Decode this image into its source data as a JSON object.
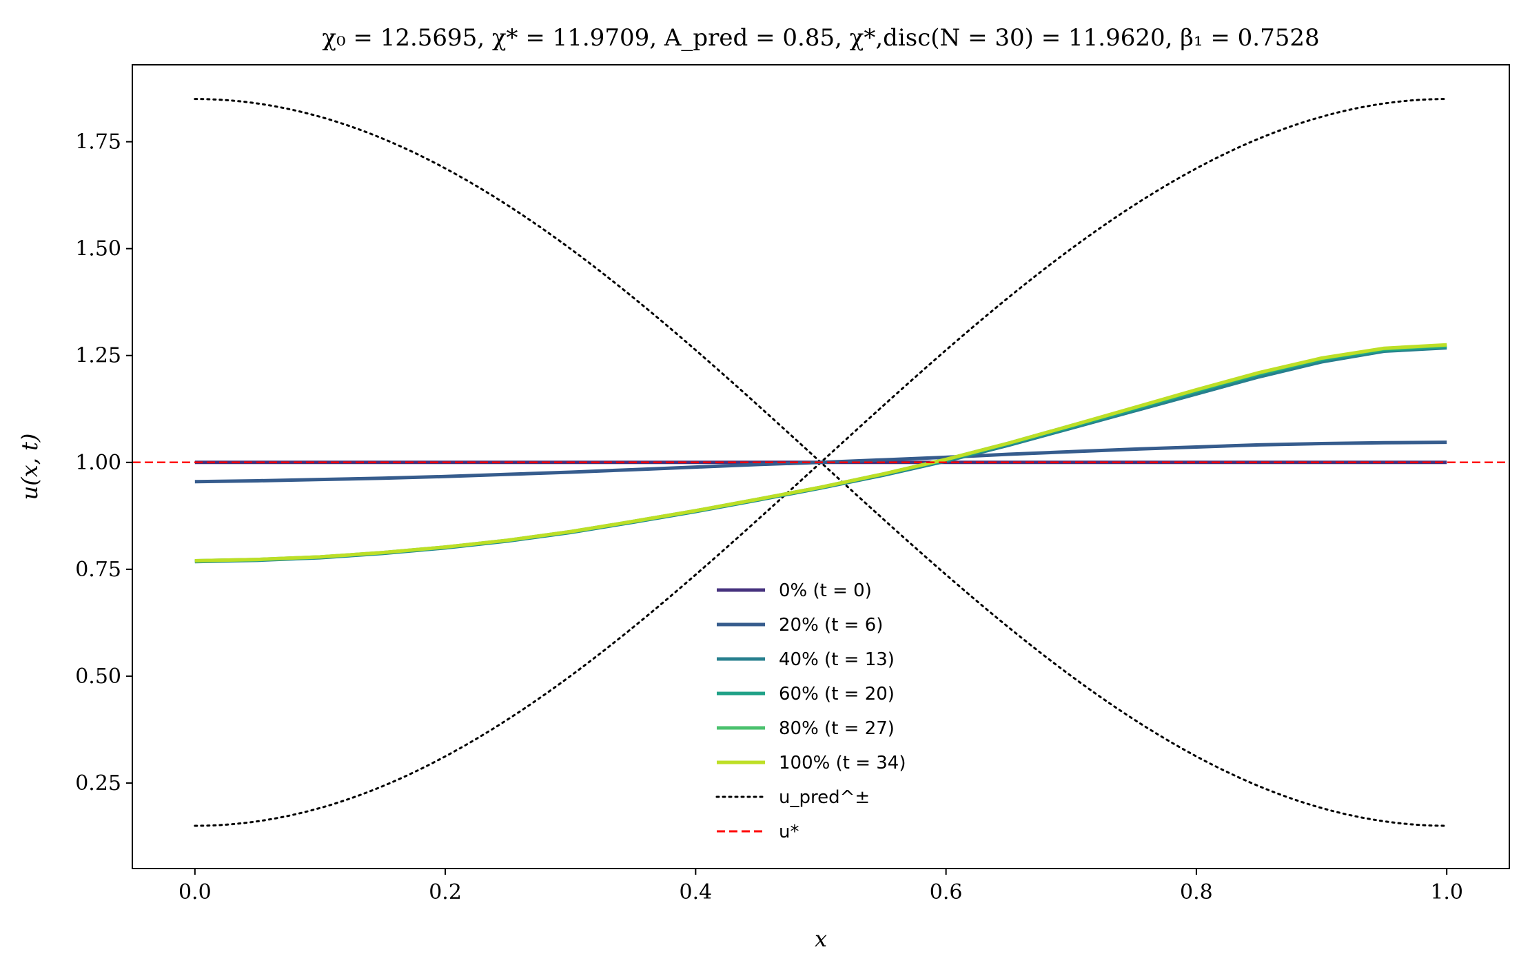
{
  "chart_data": {
    "type": "line",
    "title": "χ₀ = 12.5695,  χ* = 11.9709,  A_pred = 0.85,  χ*,disc(N = 30) = 11.9620,  β₁ = 0.7528",
    "xlabel": "x",
    "ylabel": "u(x, t)",
    "xlim": [
      -0.05,
      1.05
    ],
    "ylim": [
      0.05,
      1.93
    ],
    "xticks": [
      0.0,
      0.2,
      0.4,
      0.6,
      0.8,
      1.0
    ],
    "xtick_labels": [
      "0.0",
      "0.2",
      "0.4",
      "0.6",
      "0.8",
      "1.0"
    ],
    "yticks": [
      0.25,
      0.5,
      0.75,
      1.0,
      1.25,
      1.5,
      1.75
    ],
    "ytick_labels": [
      "0.25",
      "0.50",
      "0.75",
      "1.00",
      "1.25",
      "1.50",
      "1.75"
    ],
    "grid": false,
    "legend_position": "lower-center",
    "x": [
      0.0,
      0.05,
      0.1,
      0.15,
      0.2,
      0.25,
      0.3,
      0.35,
      0.4,
      0.45,
      0.5,
      0.55,
      0.6,
      0.65,
      0.7,
      0.75,
      0.8,
      0.85,
      0.9,
      0.95,
      1.0
    ],
    "series": [
      {
        "name": "0% (t = 0)",
        "color": "#46327e",
        "style": "solid",
        "values": [
          1.0,
          1.0,
          1.0,
          1.0,
          1.0,
          1.0,
          1.0,
          1.0,
          1.0,
          1.0,
          1.0,
          1.0,
          1.0,
          1.0,
          1.0,
          1.0,
          1.0,
          1.0,
          1.0,
          1.0,
          1.0
        ]
      },
      {
        "name": "20% (t = 6)",
        "color": "#365c8d",
        "style": "solid",
        "values": [
          0.955,
          0.957,
          0.96,
          0.963,
          0.967,
          0.972,
          0.977,
          0.983,
          0.989,
          0.995,
          1.0,
          1.006,
          1.012,
          1.019,
          1.025,
          1.031,
          1.036,
          1.041,
          1.044,
          1.046,
          1.047
        ]
      },
      {
        "name": "40% (t = 13)",
        "color": "#277f8e",
        "style": "solid",
        "values": [
          0.768,
          0.771,
          0.777,
          0.787,
          0.8,
          0.816,
          0.836,
          0.86,
          0.885,
          0.912,
          0.94,
          0.97,
          1.003,
          1.04,
          1.08,
          1.12,
          1.16,
          1.2,
          1.235,
          1.26,
          1.268
        ]
      },
      {
        "name": "60% (t = 20)",
        "color": "#1fa187",
        "style": "solid",
        "values": [
          0.769,
          0.772,
          0.778,
          0.788,
          0.801,
          0.817,
          0.837,
          0.861,
          0.886,
          0.913,
          0.941,
          0.972,
          1.005,
          1.043,
          1.083,
          1.124,
          1.166,
          1.206,
          1.24,
          1.263,
          1.271
        ]
      },
      {
        "name": "80% (t = 27)",
        "color": "#4ac16d",
        "style": "solid",
        "values": [
          0.77,
          0.773,
          0.779,
          0.789,
          0.802,
          0.818,
          0.838,
          0.862,
          0.887,
          0.914,
          0.942,
          0.973,
          1.007,
          1.045,
          1.086,
          1.127,
          1.169,
          1.209,
          1.243,
          1.266,
          1.274
        ]
      },
      {
        "name": "100% (t = 34)",
        "color": "#bddf26",
        "style": "solid",
        "values": [
          0.77,
          0.773,
          0.779,
          0.789,
          0.802,
          0.818,
          0.838,
          0.862,
          0.887,
          0.914,
          0.942,
          0.973,
          1.007,
          1.045,
          1.086,
          1.128,
          1.17,
          1.21,
          1.244,
          1.267,
          1.275
        ]
      }
    ],
    "reference_lines": [
      {
        "name": "u_pred^±",
        "type": "cosine_envelope",
        "color": "#000000",
        "style": "dotted",
        "center": 1.0,
        "amplitude": 0.85
      },
      {
        "name": "u*",
        "type": "horizontal",
        "color": "#ff0000",
        "style": "dashed",
        "y": 1.0
      }
    ]
  }
}
